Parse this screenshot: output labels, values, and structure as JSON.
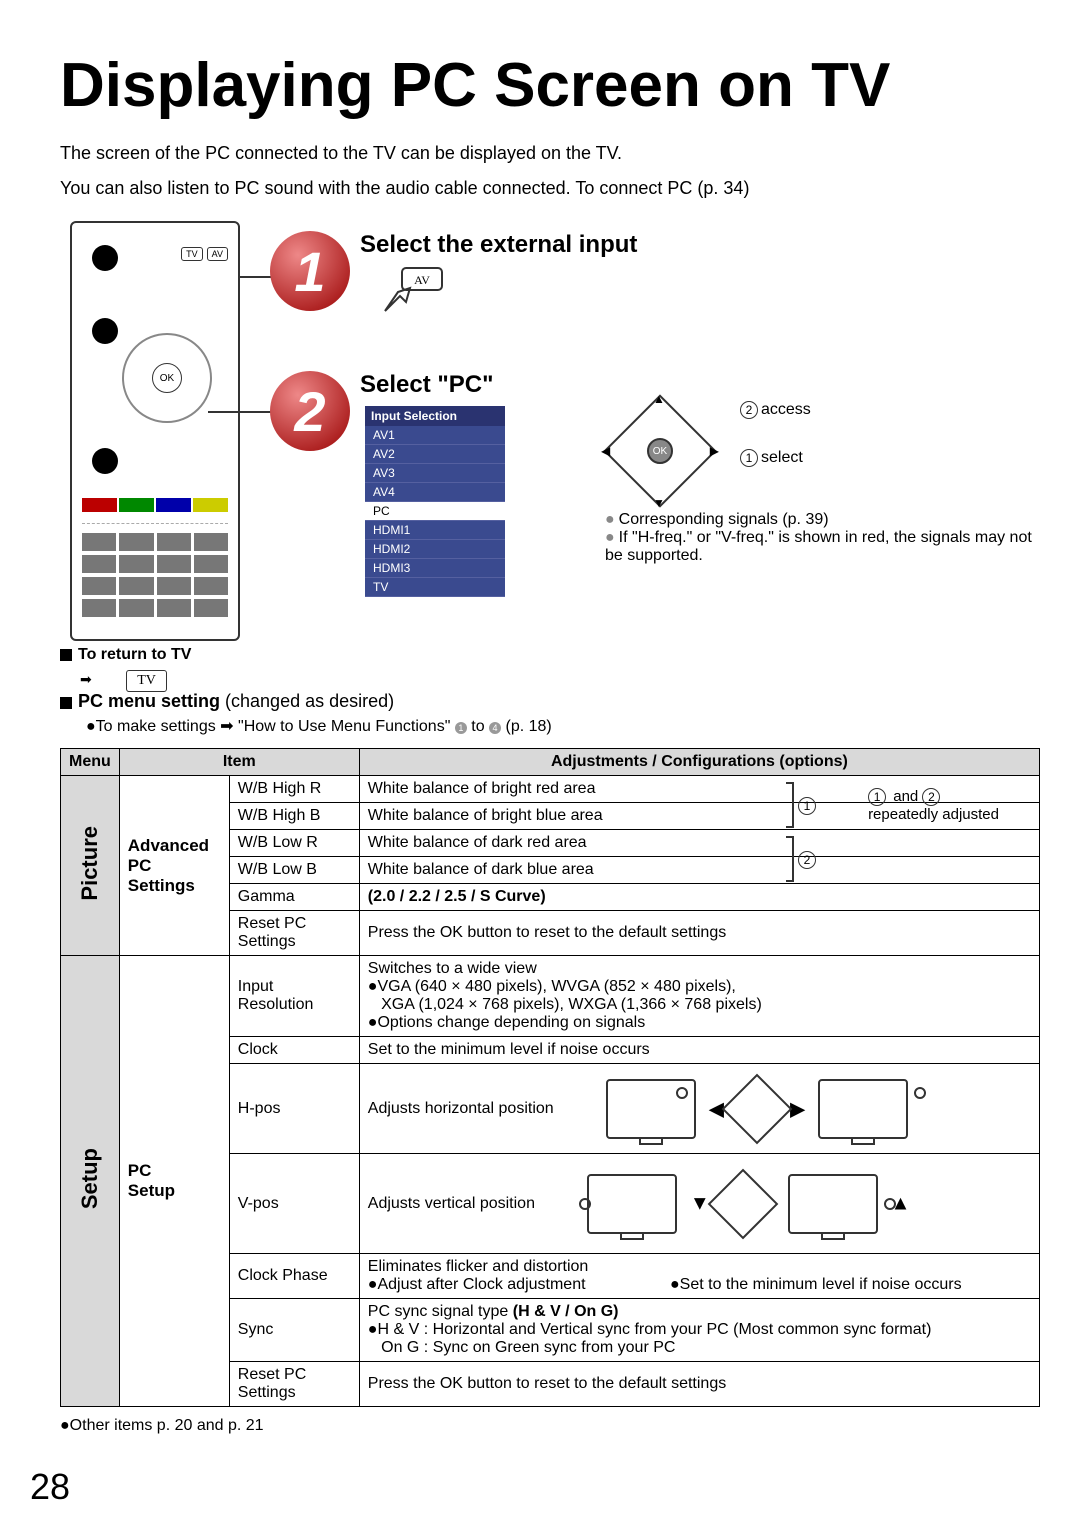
{
  "title": "Displaying PC Screen on TV",
  "intro1": "The screen of the PC connected to the TV can be displayed on the TV.",
  "intro2": "You can also listen to PC sound with the audio cable connected. To connect PC (p. 34)",
  "remote": {
    "tv_btn": "TV",
    "av_btn": "AV",
    "ok": "OK"
  },
  "step1": {
    "num": "1",
    "title": "Select the external input",
    "icon_label": "AV"
  },
  "step2": {
    "num": "2",
    "title": "Select \"PC\"",
    "panel_title": "Input Selection",
    "options": [
      "AV1",
      "AV2",
      "AV3",
      "AV4",
      "PC",
      "HDMI1",
      "HDMI2",
      "HDMI3",
      "TV"
    ],
    "selected": "PC",
    "nav_ok": "OK",
    "label_access": "access",
    "label_select": "select",
    "note1": "Corresponding signals (p. 39)",
    "note2": "If \"H-freq.\" or \"V-freq.\" is shown in red, the signals may not be supported."
  },
  "return_tv_label": "To return to TV",
  "return_tv_btn": "TV",
  "pc_menu_heading": "PC menu setting",
  "pc_menu_paren": "(changed as desired)",
  "pc_menu_note_a": "To make settings",
  "pc_menu_note_b": "\"How to Use Menu Functions\"",
  "pc_menu_note_c": "(p. 18)",
  "table": {
    "headers": {
      "menu": "Menu",
      "item": "Item",
      "adj": "Adjustments / Configurations (options)"
    },
    "picture_label": "Picture",
    "setup_label": "Setup",
    "picture_section": "Advanced PC Settings",
    "setup_section": "PC Setup",
    "rows_picture": [
      {
        "item": "W/B High R",
        "adj": "White balance of bright red area"
      },
      {
        "item": "W/B High B",
        "adj": "White balance of bright blue area"
      },
      {
        "item": "W/B Low R",
        "adj": "White balance of dark red area"
      },
      {
        "item": "W/B Low B",
        "adj": "White balance of dark blue area"
      },
      {
        "item": "Gamma",
        "adj": "(2.0 / 2.2 / 2.5 / S Curve)"
      },
      {
        "item": "Reset PC Settings",
        "adj": "Press the OK button to reset to the default settings"
      }
    ],
    "wb_side": {
      "and": " and ",
      "text": "repeatedly adjusted"
    },
    "rows_setup": {
      "input_res_item": "Input Resolution",
      "input_res_l1": "Switches to a wide view",
      "input_res_l2": "VGA (640 × 480 pixels), WVGA (852 × 480 pixels),",
      "input_res_l3": "XGA (1,024 × 768 pixels), WXGA (1,366 × 768 pixels)",
      "input_res_l4": "Options change depending on signals",
      "clock_item": "Clock",
      "clock_adj": "Set to the minimum level if noise occurs",
      "hpos_item": "H-pos",
      "hpos_adj": "Adjusts horizontal position",
      "vpos_item": "V-pos",
      "vpos_adj": "Adjusts vertical position",
      "clockphase_item": "Clock Phase",
      "clockphase_l1": "Eliminates flicker and distortion",
      "clockphase_l2": "Adjust after Clock adjustment",
      "clockphase_l3": "Set to the minimum level if noise occurs",
      "sync_item": "Sync",
      "sync_l1": "PC sync signal type (H & V / On G)",
      "sync_l2": "H & V : Horizontal and Vertical sync from your PC (Most common sync format)",
      "sync_l3": "On G  : Sync on Green sync from your PC",
      "reset_item": "Reset PC Settings",
      "reset_adj": "Press the OK button to reset to the default settings"
    }
  },
  "footer_note": "Other items      p. 20 and p. 21",
  "page_number": "28"
}
